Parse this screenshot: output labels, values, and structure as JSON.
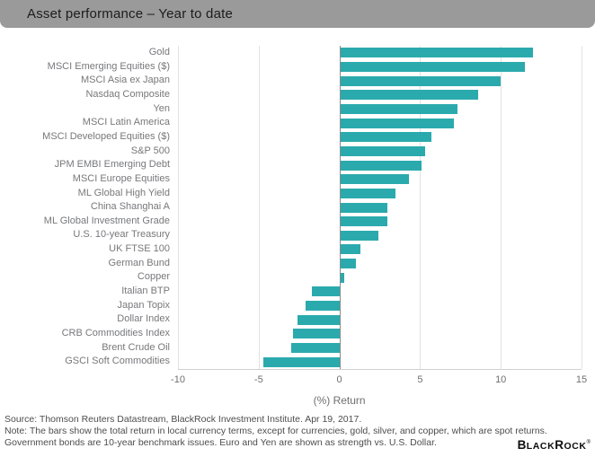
{
  "header": {
    "title": "Asset performance – Year to date",
    "bg_color": "#9a9a9a"
  },
  "chart_data": {
    "type": "bar",
    "orientation": "horizontal",
    "title": "Asset performance – Year to date",
    "xlabel": "(%) Return",
    "xlim": [
      -10,
      15
    ],
    "xticks": [
      -10,
      -5,
      0,
      5,
      10,
      15
    ],
    "grid": "vertical",
    "bar_color": "#2baaad",
    "categories": [
      "Gold",
      "MSCI Emerging Equities ($)",
      "MSCI Asia ex Japan",
      "Nasdaq Composite",
      "Yen",
      "MSCI Latin America",
      "MSCI Developed Equities ($)",
      "S&P 500",
      "JPM EMBI Emerging Debt",
      "MSCI Europe Equities",
      "ML Global High Yield",
      "China Shanghai A",
      "ML Global Investment Grade",
      "U.S. 10-year Treasury",
      "UK FTSE 100",
      "German Bund",
      "Copper",
      "Italian BTP",
      "Japan Topix",
      "Dollar Index",
      "CRB Commodities Index",
      "Brent Crude Oil",
      "GSCI Soft Commodities"
    ],
    "values": [
      12.0,
      11.5,
      10.0,
      8.6,
      7.3,
      7.1,
      5.7,
      5.3,
      5.1,
      4.3,
      3.5,
      3.0,
      3.0,
      2.4,
      1.3,
      1.0,
      0.3,
      -1.7,
      -2.1,
      -2.6,
      -2.9,
      -3.0,
      -4.7
    ]
  },
  "footer": {
    "source": "Source: Thomson Reuters Datastream, BlackRock Investment Institute. Apr 19, 2017.",
    "note": "Note: The bars show the total return in local currency terms, except for currencies, gold, silver, and copper, which are spot returns.",
    "note2": "Government bonds are 10-year benchmark issues. Euro and Yen are shown as strength vs. U.S. Dollar.",
    "logo": {
      "b": "B",
      "lack": "LACK",
      "r": "R",
      "ock": "OCK",
      "reg": "®"
    }
  }
}
